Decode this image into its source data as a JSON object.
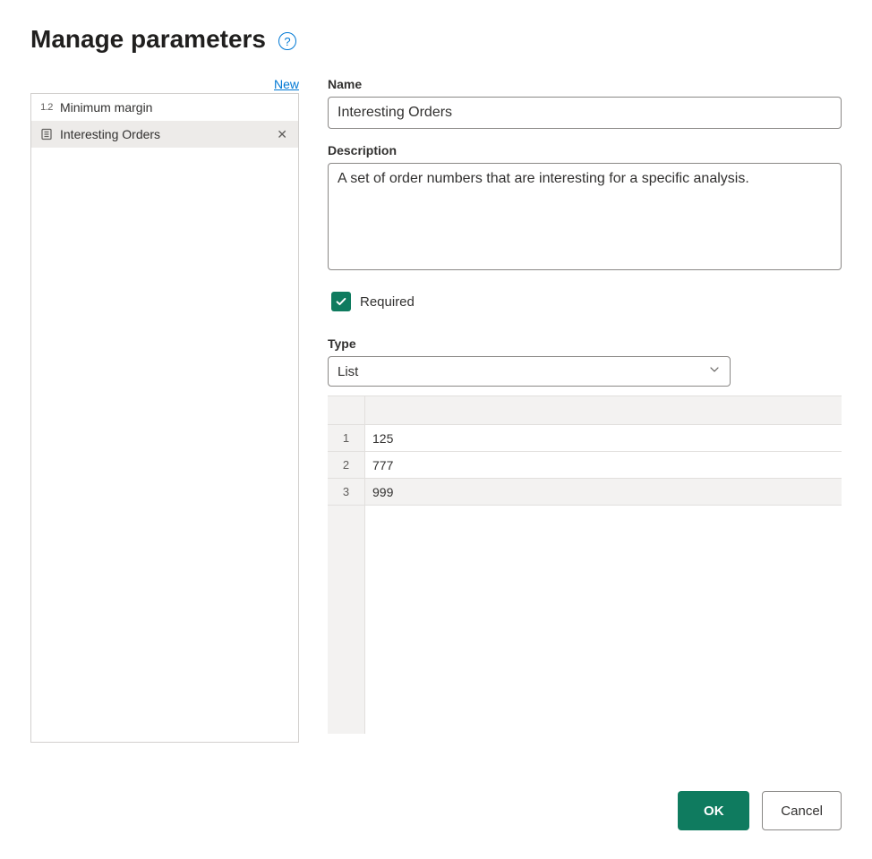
{
  "header": {
    "title": "Manage parameters"
  },
  "sidebar": {
    "new_label": "New",
    "items": [
      {
        "icon": "number",
        "label": "Minimum margin",
        "selected": false
      },
      {
        "icon": "list",
        "label": "Interesting Orders",
        "selected": true
      }
    ]
  },
  "form": {
    "name_label": "Name",
    "name_value": "Interesting Orders",
    "description_label": "Description",
    "description_value": "A set of order numbers that are interesting for a specific analysis.",
    "required_label": "Required",
    "required_checked": true,
    "type_label": "Type",
    "type_value": "List",
    "list_values": [
      "125",
      "777",
      "999"
    ],
    "selected_row_index": 2
  },
  "footer": {
    "ok_label": "OK",
    "cancel_label": "Cancel"
  },
  "colors": {
    "accent": "#0f7b5f",
    "link": "#0078d4",
    "border": "#8a8886",
    "grid_border": "#e1dfdd",
    "grid_header_bg": "#f3f2f1",
    "selected_bg": "#edebe9"
  }
}
